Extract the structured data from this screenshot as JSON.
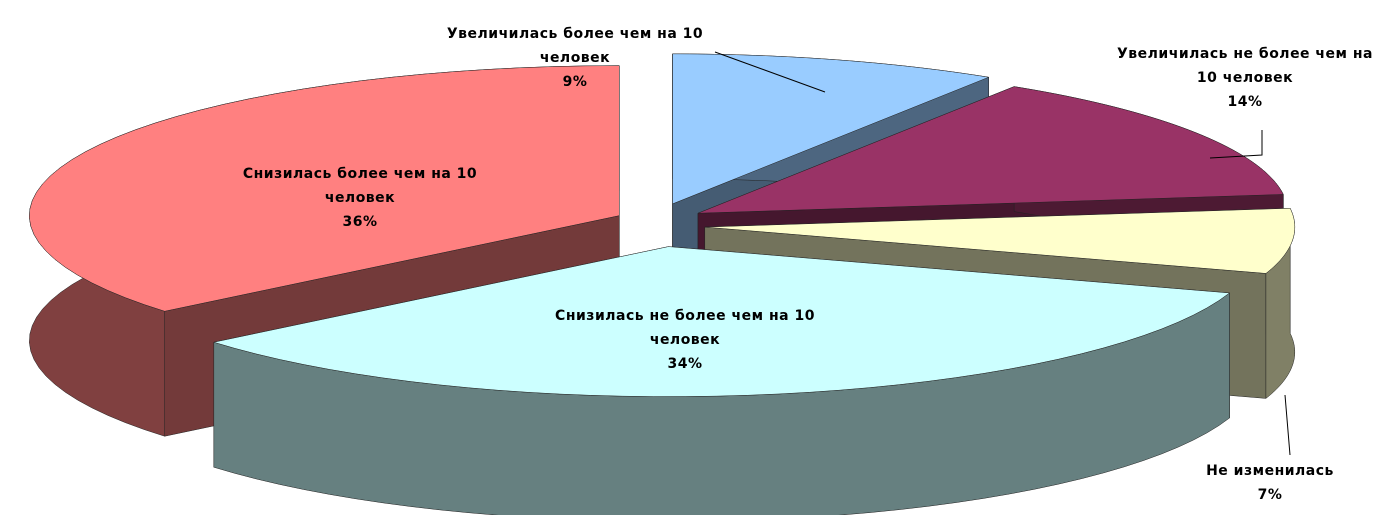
{
  "chart_data": {
    "type": "pie3d",
    "categories": [
      "Увеличилась более чем на 10 человек",
      "Увеличилась не более чем на 10 человек",
      "Не изменилась",
      "Снизилась не более чем на 10 человек",
      "Снизилась более чем на 10 человек"
    ],
    "values": [
      9,
      14,
      7,
      34,
      36
    ],
    "value_labels": [
      "9%",
      "14%",
      "7%",
      "34%",
      "36%"
    ],
    "colors": [
      "#99ccff",
      "#993366",
      "#ffffcc",
      "#ccffff",
      "#ff8080"
    ]
  }
}
